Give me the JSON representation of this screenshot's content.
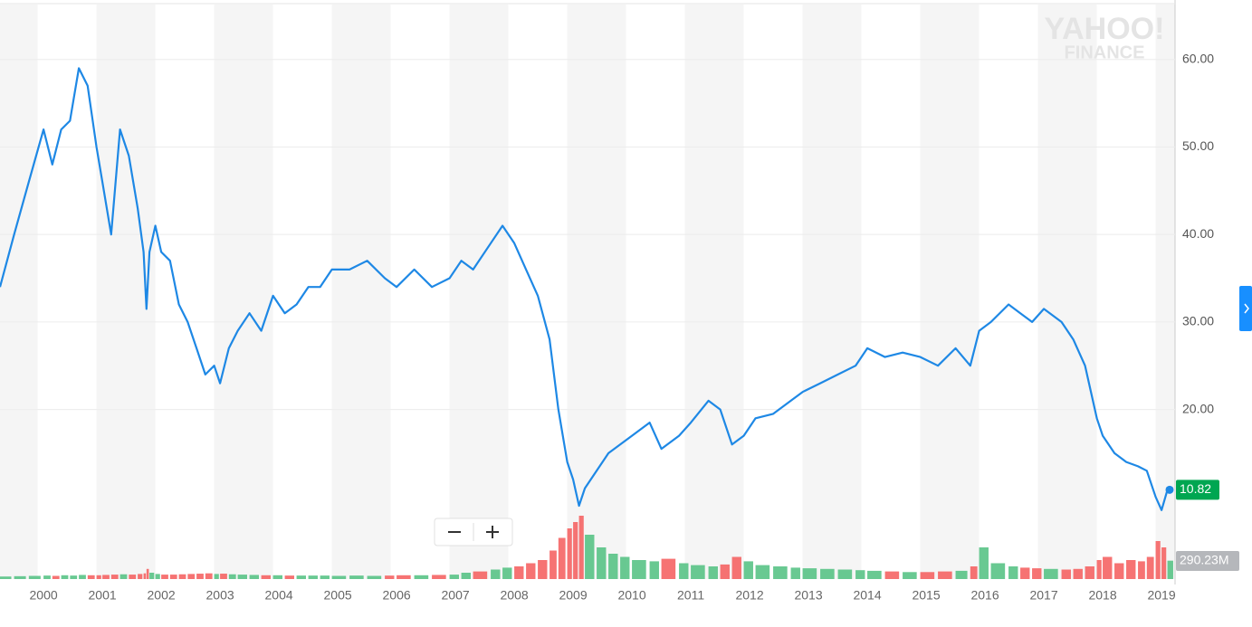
{
  "chart_data": {
    "type": "line",
    "watermark": [
      "YAHOO!",
      "FINANCE"
    ],
    "x": [
      1999.26,
      1999.5,
      1999.75,
      2000.0,
      2000.15,
      2000.3,
      2000.45,
      2000.6,
      2000.75,
      2000.9,
      2001.0,
      2001.15,
      2001.3,
      2001.45,
      2001.6,
      2001.7,
      2001.75,
      2001.8,
      2001.9,
      2002.0,
      2002.15,
      2002.3,
      2002.45,
      2002.6,
      2002.75,
      2002.9,
      2003.0,
      2003.15,
      2003.3,
      2003.5,
      2003.7,
      2003.9,
      2004.1,
      2004.3,
      2004.5,
      2004.7,
      2004.9,
      2005.2,
      2005.5,
      2005.8,
      2006.0,
      2006.3,
      2006.6,
      2006.9,
      2007.1,
      2007.3,
      2007.6,
      2007.8,
      2008.0,
      2008.2,
      2008.4,
      2008.6,
      2008.75,
      2008.9,
      2009.0,
      2009.1,
      2009.2,
      2009.4,
      2009.6,
      2009.8,
      2010.0,
      2010.3,
      2010.5,
      2010.8,
      2011.0,
      2011.3,
      2011.5,
      2011.7,
      2011.9,
      2012.1,
      2012.4,
      2012.7,
      2012.9,
      2013.2,
      2013.5,
      2013.8,
      2014.0,
      2014.3,
      2014.6,
      2014.9,
      2015.2,
      2015.5,
      2015.75,
      2015.9,
      2016.1,
      2016.4,
      2016.6,
      2016.8,
      2017.0,
      2017.3,
      2017.5,
      2017.7,
      2017.9,
      2018.0,
      2018.2,
      2018.4,
      2018.6,
      2018.75,
      2018.9,
      2019.0,
      2019.1
    ],
    "series": [
      {
        "color": "#1e88e5",
        "values": [
          34,
          40,
          46,
          52,
          48,
          52,
          53,
          59,
          57,
          50,
          46,
          40,
          52,
          49,
          43,
          38,
          31.5,
          38,
          41,
          38,
          37,
          32,
          30,
          27,
          24,
          25,
          23,
          27,
          29,
          31,
          29,
          33,
          31,
          32,
          34,
          34,
          36,
          36,
          37,
          35,
          34,
          36,
          34,
          35,
          37,
          36,
          39,
          41,
          39,
          36,
          33,
          28,
          20,
          14,
          12,
          9,
          11,
          13,
          15,
          16,
          17,
          18.5,
          15.5,
          17,
          18.5,
          21,
          20,
          16,
          17,
          19,
          19.5,
          21,
          22,
          23,
          24,
          25,
          27,
          26,
          26.5,
          26,
          25,
          27,
          25,
          29,
          30,
          32,
          31,
          30,
          31.5,
          30,
          28,
          25,
          19,
          17,
          15,
          14,
          13.5,
          13,
          10,
          8.5,
          10.82
        ]
      }
    ],
    "volume": {
      "up_color": "#4fbf7f",
      "down_color": "#f45b5b",
      "ylim": [
        0,
        1000000000
      ],
      "values": [
        40000000,
        45000000,
        50000000,
        55000000,
        50000000,
        60000000,
        55000000,
        65000000,
        60000000,
        60000000,
        65000000,
        70000000,
        75000000,
        70000000,
        80000000,
        90000000,
        160000000,
        100000000,
        80000000,
        70000000,
        70000000,
        75000000,
        80000000,
        85000000,
        90000000,
        80000000,
        85000000,
        75000000,
        70000000,
        65000000,
        60000000,
        60000000,
        55000000,
        55000000,
        55000000,
        55000000,
        50000000,
        55000000,
        50000000,
        55000000,
        60000000,
        60000000,
        65000000,
        70000000,
        100000000,
        120000000,
        150000000,
        180000000,
        200000000,
        250000000,
        300000000,
        450000000,
        650000000,
        800000000,
        900000000,
        1000000000,
        700000000,
        500000000,
        400000000,
        350000000,
        300000000,
        280000000,
        320000000,
        250000000,
        220000000,
        200000000,
        230000000,
        350000000,
        280000000,
        220000000,
        200000000,
        180000000,
        170000000,
        160000000,
        150000000,
        140000000,
        130000000,
        120000000,
        110000000,
        110000000,
        120000000,
        130000000,
        200000000,
        500000000,
        250000000,
        200000000,
        180000000,
        170000000,
        160000000,
        150000000,
        160000000,
        200000000,
        300000000,
        350000000,
        250000000,
        300000000,
        280000000,
        350000000,
        600000000,
        500000000,
        290230000
      ]
    },
    "last_price": 10.82,
    "last_volume": {
      "value": 290230000,
      "label": "290.23M"
    },
    "xlim": [
      1999.26,
      2019.23
    ],
    "xticks": [
      2000,
      2001,
      2002,
      2003,
      2004,
      2005,
      2006,
      2007,
      2008,
      2009,
      2010,
      2011,
      2012,
      2013,
      2014,
      2015,
      2016,
      2017,
      2018,
      2019
    ],
    "ylim": [
      0,
      66.8
    ],
    "yticks": [
      {
        "value": 20,
        "label": "20.00"
      },
      {
        "value": 30,
        "label": "30.00"
      },
      {
        "value": 40,
        "label": "40.00"
      },
      {
        "value": 50,
        "label": "50.00"
      },
      {
        "value": 60,
        "label": "60.00"
      }
    ],
    "grid": true
  }
}
